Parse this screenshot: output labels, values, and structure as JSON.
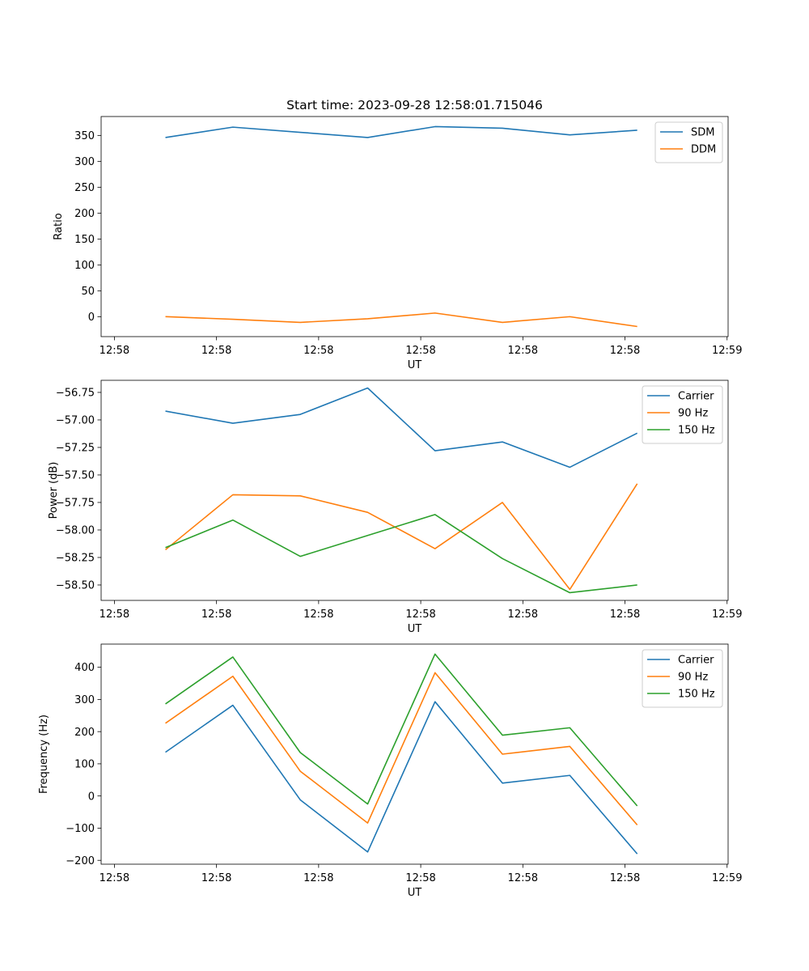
{
  "chart_data": [
    {
      "type": "line",
      "title": "Start time: 2023-09-28 12:58:01.715046",
      "xlabel": "UT",
      "ylabel": "Ratio",
      "x_ticks": [
        0,
        5,
        10,
        15,
        20,
        25,
        30
      ],
      "x_tick_labels": [
        "12:58",
        "12:58",
        "12:58",
        "12:58",
        "12:58",
        "12:58",
        "12:59"
      ],
      "xlim": [
        -0.65,
        30.05
      ],
      "x": [
        2.5,
        5.8,
        9.1,
        12.4,
        15.7,
        19.0,
        22.3,
        25.6
      ],
      "ylim": [
        -38.5,
        386.5
      ],
      "y_ticks": [
        0,
        50,
        100,
        150,
        200,
        250,
        300,
        350
      ],
      "y_tick_labels": [
        "0",
        "50",
        "100",
        "150",
        "200",
        "250",
        "300",
        "350"
      ],
      "legend_position": "top-right",
      "series": [
        {
          "name": "SDM",
          "color": "#1f77b4",
          "values": [
            346,
            366,
            356,
            346,
            367,
            364,
            351,
            360
          ]
        },
        {
          "name": "DDM",
          "color": "#ff7f0e",
          "values": [
            0,
            -5,
            -11,
            -4,
            7,
            -11,
            0,
            -19
          ]
        }
      ]
    },
    {
      "type": "line",
      "title": "",
      "xlabel": "UT",
      "ylabel": "Power (dB)",
      "x_ticks": [
        0,
        5,
        10,
        15,
        20,
        25,
        30
      ],
      "x_tick_labels": [
        "12:58",
        "12:58",
        "12:58",
        "12:58",
        "12:58",
        "12:58",
        "12:59"
      ],
      "xlim": [
        -0.65,
        30.05
      ],
      "x": [
        2.5,
        5.8,
        9.1,
        12.4,
        15.7,
        19.0,
        22.3,
        25.6
      ],
      "ylim": [
        -58.64,
        -56.64
      ],
      "y_ticks": [
        -58.5,
        -58.25,
        -58.0,
        -57.75,
        -57.5,
        -57.25,
        -57.0,
        -56.75
      ],
      "y_tick_labels": [
        "−58.50",
        "−58.25",
        "−58.00",
        "−57.75",
        "−57.50",
        "−57.25",
        "−57.00",
        "−56.75"
      ],
      "legend_position": "top-right",
      "series": [
        {
          "name": "Carrier",
          "color": "#1f77b4",
          "values": [
            -56.92,
            -57.03,
            -56.95,
            -56.71,
            -57.28,
            -57.2,
            -57.43,
            -57.12
          ]
        },
        {
          "name": "90 Hz",
          "color": "#ff7f0e",
          "values": [
            -58.18,
            -57.68,
            -57.69,
            -57.84,
            -58.17,
            -57.75,
            -58.54,
            -57.58
          ]
        },
        {
          "name": "150 Hz",
          "color": "#2ca02c",
          "values": [
            -58.16,
            -57.91,
            -58.24,
            -58.05,
            -57.86,
            -58.26,
            -58.57,
            -58.5
          ]
        }
      ]
    },
    {
      "type": "line",
      "title": "",
      "xlabel": "UT",
      "ylabel": "Frequency (Hz)",
      "x_ticks": [
        0,
        5,
        10,
        15,
        20,
        25,
        30
      ],
      "x_tick_labels": [
        "12:58",
        "12:58",
        "12:58",
        "12:58",
        "12:58",
        "12:58",
        "12:59"
      ],
      "xlim": [
        -0.65,
        30.05
      ],
      "x": [
        2.5,
        5.8,
        9.1,
        12.4,
        15.7,
        19.0,
        22.3,
        25.6
      ],
      "ylim": [
        -212,
        472
      ],
      "y_ticks": [
        -200,
        -100,
        0,
        100,
        200,
        300,
        400
      ],
      "y_tick_labels": [
        "−200",
        "−100",
        "0",
        "100",
        "200",
        "300",
        "400"
      ],
      "legend_position": "top-right",
      "series": [
        {
          "name": "Carrier",
          "color": "#1f77b4",
          "values": [
            136,
            282,
            -12,
            -174,
            293,
            40,
            64,
            -180
          ]
        },
        {
          "name": "90 Hz",
          "color": "#ff7f0e",
          "values": [
            226,
            372,
            77,
            -84,
            383,
            130,
            154,
            -90
          ]
        },
        {
          "name": "150 Hz",
          "color": "#2ca02c",
          "values": [
            286,
            432,
            135,
            -25,
            441,
            189,
            212,
            -31
          ]
        }
      ]
    }
  ]
}
